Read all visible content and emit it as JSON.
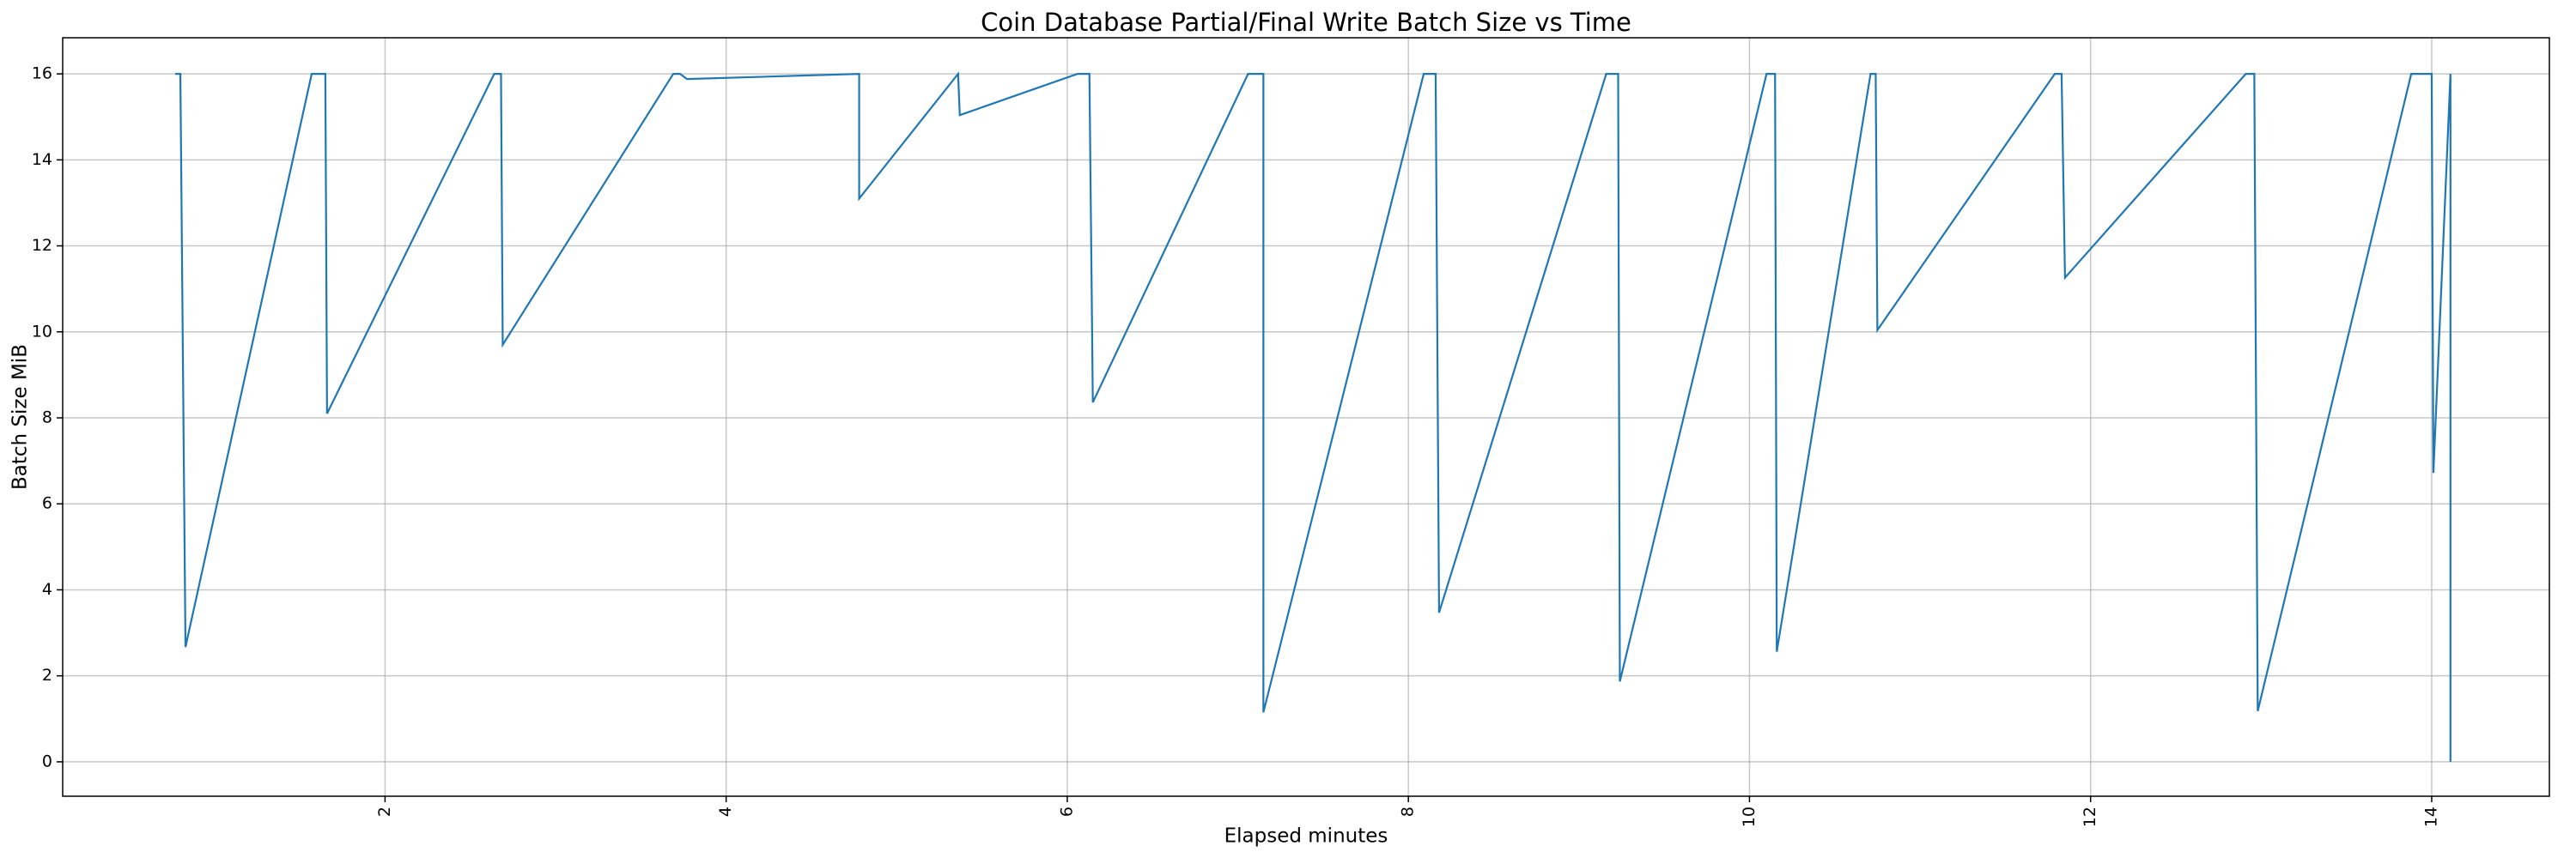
{
  "chart_data": {
    "type": "line",
    "title": "Coin Database Partial/Final Write Batch Size vs Time",
    "xlabel": "Elapsed minutes",
    "ylabel": "Batch Size MiB",
    "x": [
      0.77,
      0.8,
      0.83,
      1.57,
      1.65,
      1.66,
      2.64,
      2.68,
      2.69,
      3.69,
      3.73,
      3.77,
      4.78,
      4.78,
      5.36,
      5.37,
      6.06,
      6.13,
      6.15,
      7.06,
      7.15,
      7.15,
      8.09,
      8.16,
      8.18,
      9.16,
      9.23,
      9.24,
      10.1,
      10.15,
      10.16,
      10.71,
      10.74,
      10.75,
      11.79,
      11.83,
      11.85,
      12.91,
      12.96,
      12.98,
      13.88,
      14.0,
      14.01,
      14.11,
      14.11
    ],
    "values": [
      16,
      16,
      2.67,
      16,
      16,
      8.1,
      16,
      16,
      9.7,
      16,
      16,
      15.88,
      16,
      13.1,
      16,
      15.04,
      16,
      16,
      8.36,
      16,
      16,
      1.15,
      16,
      16,
      3.47,
      16,
      16,
      1.87,
      16,
      16,
      2.56,
      16,
      16,
      10.04,
      16,
      16,
      11.26,
      16,
      16,
      1.18,
      16,
      16,
      6.72,
      16,
      0
    ],
    "color": "#1f77b4",
    "xlim": [
      0.11,
      14.69
    ],
    "xticks": [
      2,
      4,
      6,
      8,
      10,
      12,
      14
    ],
    "ylim": [
      -0.8,
      16.84
    ],
    "yticks": [
      0,
      2,
      4,
      6,
      8,
      10,
      12,
      14,
      16
    ],
    "grid": true
  }
}
